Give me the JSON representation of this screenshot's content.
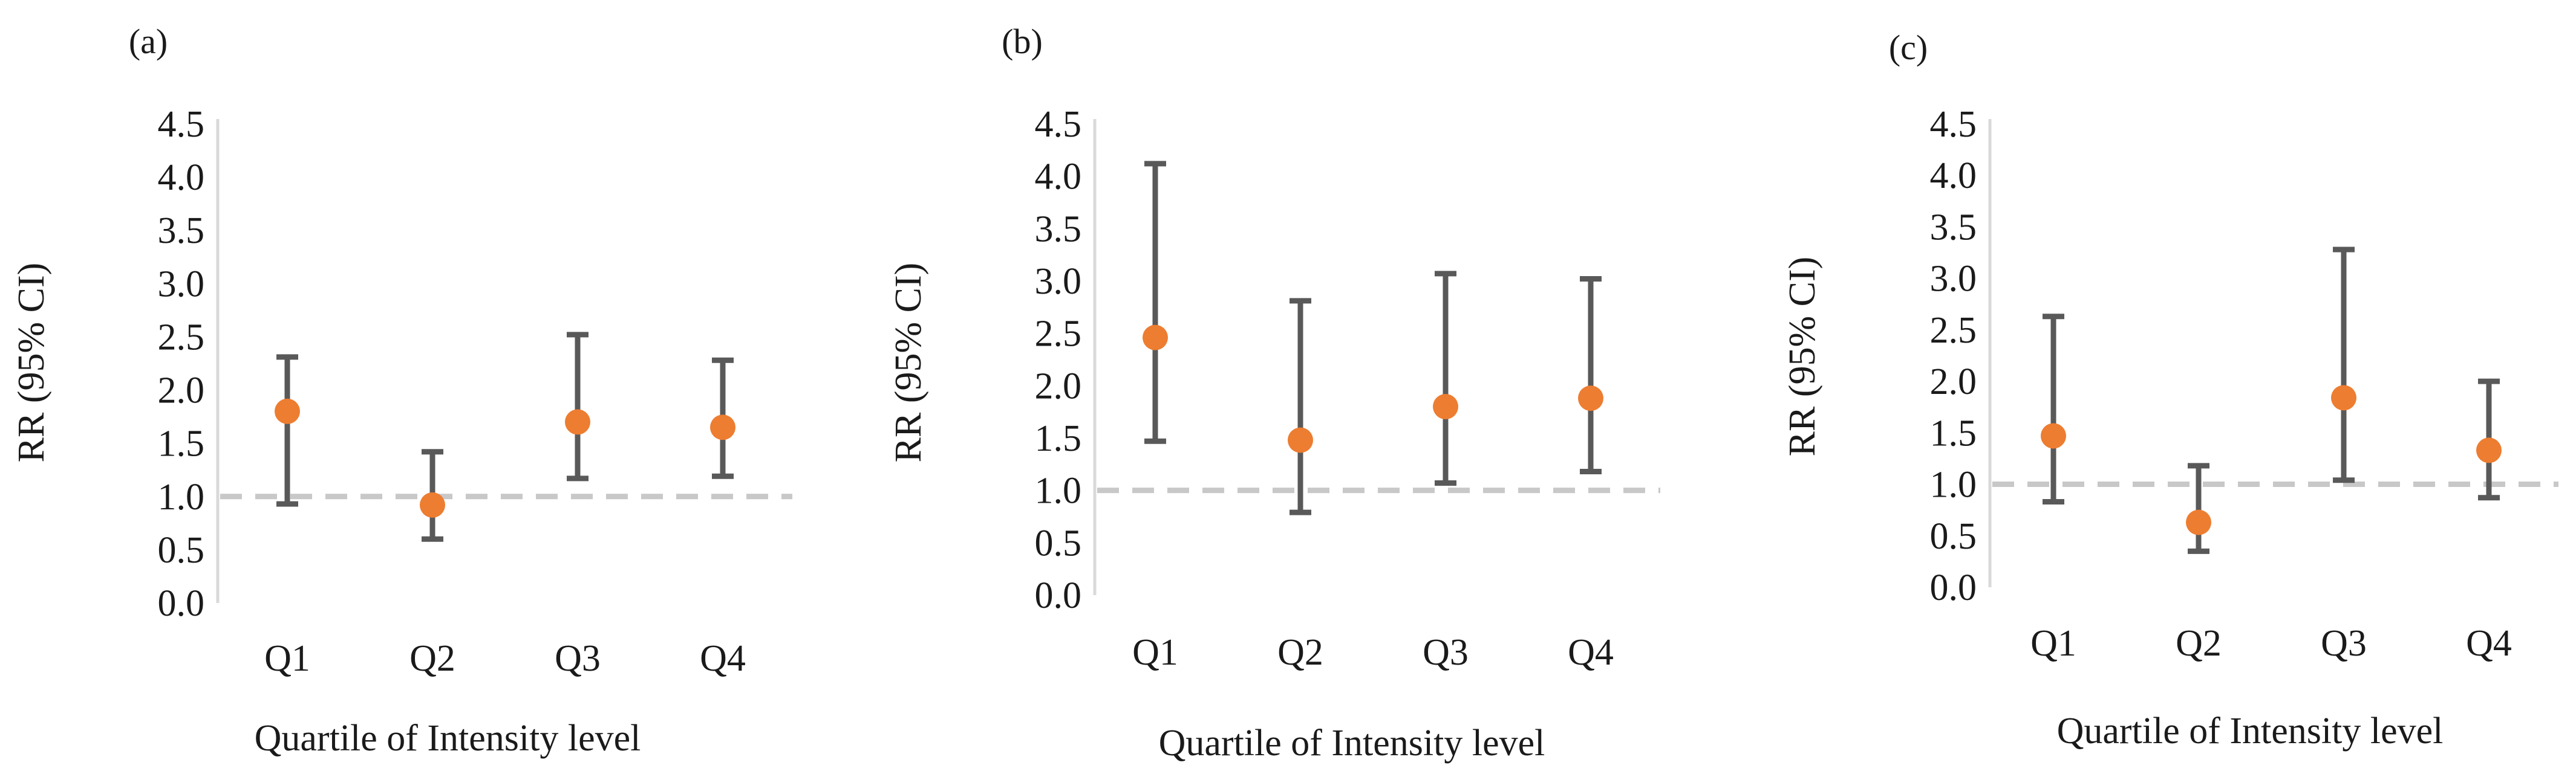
{
  "chart_data": [
    {
      "type": "scatter",
      "panel_label": "(a)",
      "categories": [
        "Q1",
        "Q2",
        "Q3",
        "Q4"
      ],
      "series": [
        {
          "name": "RR",
          "values": [
            1.8,
            0.92,
            1.7,
            1.65
          ],
          "ci_lower": [
            0.93,
            0.6,
            1.17,
            1.19
          ],
          "ci_upper": [
            2.31,
            1.42,
            2.52,
            2.28
          ]
        }
      ],
      "reference_line": 1.0,
      "ylabel": "RR (95% CI)",
      "xlabel": "Quartile of Intensity level",
      "ylim": [
        0,
        4.5
      ],
      "yticks": [
        "0.0",
        "0.5",
        "1.0",
        "1.5",
        "2.0",
        "2.5",
        "3.0",
        "3.5",
        "4.0",
        "4.5"
      ],
      "grid": false
    },
    {
      "type": "scatter",
      "panel_label": "(b)",
      "categories": [
        "Q1",
        "Q2",
        "Q3",
        "Q4"
      ],
      "series": [
        {
          "name": "RR",
          "values": [
            2.46,
            1.48,
            1.8,
            1.88
          ],
          "ci_lower": [
            1.47,
            0.79,
            1.07,
            1.18
          ],
          "ci_upper": [
            4.12,
            2.81,
            3.07,
            3.02
          ]
        }
      ],
      "reference_line": 1.0,
      "ylabel": "RR (95% CI)",
      "xlabel": "Quartile of Intensity level",
      "ylim": [
        0,
        4.5
      ],
      "yticks": [
        "0.0",
        "0.5",
        "1.0",
        "1.5",
        "2.0",
        "2.5",
        "3.0",
        "3.5",
        "4.0",
        "4.5"
      ],
      "grid": false
    },
    {
      "type": "scatter",
      "panel_label": "(c)",
      "categories": [
        "Q1",
        "Q2",
        "Q3",
        "Q4"
      ],
      "series": [
        {
          "name": "RR",
          "values": [
            1.47,
            0.63,
            1.84,
            1.33
          ],
          "ci_lower": [
            0.83,
            0.35,
            1.04,
            0.87
          ],
          "ci_upper": [
            2.63,
            1.18,
            3.28,
            2.0
          ]
        }
      ],
      "reference_line": 1.0,
      "ylabel": "RR (95% CI)",
      "xlabel": "Quartile of Intensity level",
      "ylim": [
        0,
        4.5
      ],
      "yticks": [
        "0.0",
        "0.5",
        "1.0",
        "1.5",
        "2.0",
        "2.5",
        "3.0",
        "3.5",
        "4.0",
        "4.5"
      ],
      "grid": false
    }
  ],
  "colors": {
    "point": "#ed7d31",
    "error_bar": "#595959",
    "reference_line": "#c8c8c8",
    "axis": "#d9d9d9"
  }
}
